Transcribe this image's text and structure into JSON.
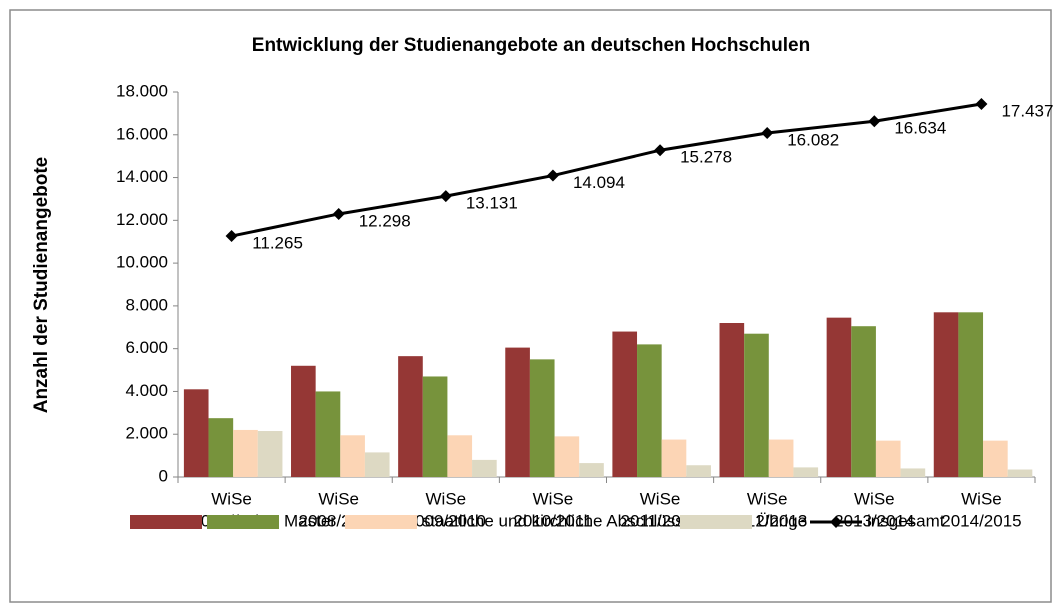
{
  "chart_data": {
    "type": "bar",
    "title": "Entwicklung der Studienangebote an deutschen Hochschulen",
    "y_label": "Anzahl der Studienangebote",
    "categories": [
      [
        "WiSe",
        "2007/2008"
      ],
      [
        "WiSe",
        "2008/2009"
      ],
      [
        "WiSe",
        "2009/2010"
      ],
      [
        "WiSe",
        "2010/2011"
      ],
      [
        "WiSe",
        "2011/2012"
      ],
      [
        "WiSe",
        "2012/2013"
      ],
      [
        "WiSe",
        "2013/2014"
      ],
      [
        "WiSe",
        "2014/2015"
      ]
    ],
    "ylim": [
      0,
      18000
    ],
    "yticks": [
      0,
      {
        "value": 2000,
        "label": "2.000"
      },
      {
        "value": 4000,
        "label": "4.000"
      },
      {
        "value": 6000,
        "label": "6.000"
      },
      {
        "value": 8000,
        "label": "8.000"
      },
      {
        "value": 10000,
        "label": "10.000"
      },
      {
        "value": 12000,
        "label": "12.000"
      },
      {
        "value": 14000,
        "label": "14.000"
      },
      {
        "value": 16000,
        "label": "16.000"
      },
      {
        "value": 18000,
        "label": "18.000"
      }
    ],
    "grid": false,
    "legend": "bottom",
    "series": [
      {
        "name": "Bachelor",
        "color": "#953735",
        "type": "bar",
        "values": [
          4100,
          5200,
          5650,
          6050,
          6800,
          7200,
          7450,
          7700
        ]
      },
      {
        "name": "Master",
        "color": "#77933c",
        "type": "bar",
        "values": [
          2750,
          4000,
          4700,
          5500,
          6200,
          6700,
          7050,
          7700
        ]
      },
      {
        "name": "staatliche und kirchliche Abschlüsse",
        "color": "#fcd5b5",
        "type": "bar",
        "values": [
          2200,
          1950,
          1950,
          1900,
          1750,
          1750,
          1700,
          1700
        ]
      },
      {
        "name": "Übrige",
        "color": "#ddd9c3",
        "type": "bar",
        "values": [
          2150,
          1150,
          800,
          650,
          550,
          450,
          400,
          350
        ]
      },
      {
        "name": "insgesamt",
        "color": "#000000",
        "type": "line",
        "values": [
          11265,
          12298,
          13131,
          14094,
          15278,
          16082,
          16634,
          17437
        ],
        "value_labels": [
          "11.265",
          "12.298",
          "13.131",
          "14.094",
          "15.278",
          "16.082",
          "16.634",
          "17.437"
        ]
      }
    ]
  }
}
